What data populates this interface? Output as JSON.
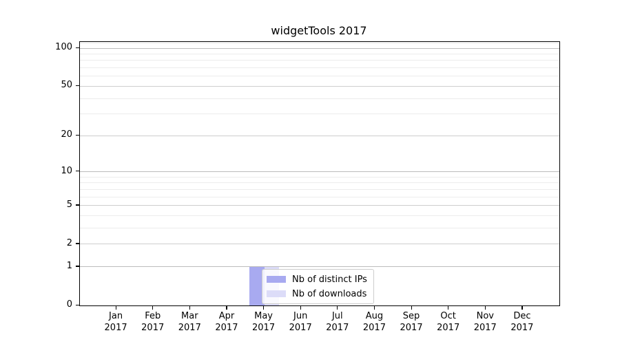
{
  "chart_data": {
    "type": "bar",
    "title": "widgetTools 2017",
    "categories": [
      "Jan",
      "Feb",
      "Mar",
      "Apr",
      "May",
      "Jun",
      "Jul",
      "Aug",
      "Sep",
      "Oct",
      "Nov",
      "Dec"
    ],
    "category_year": "2017",
    "series": [
      {
        "name": "Nb of distinct IPs",
        "color": "#a8aaf0",
        "values": [
          0,
          0,
          0,
          0,
          1,
          0,
          0,
          0,
          0,
          0,
          0,
          0
        ]
      },
      {
        "name": "Nb of downloads",
        "color": "#dcdcf8",
        "values": [
          0,
          0,
          0,
          0,
          1,
          0,
          0,
          0,
          0,
          0,
          0,
          0
        ]
      }
    ],
    "xlabel": "",
    "ylabel": "",
    "yscale": "log1p",
    "ylim": [
      0,
      112
    ],
    "y_ticks": [
      0,
      1,
      2,
      5,
      10,
      20,
      50,
      100
    ],
    "y_minor_ticks": [
      3,
      4,
      6,
      7,
      8,
      9,
      30,
      40,
      60,
      70,
      80,
      90,
      110
    ],
    "grid": "horizontal-major-and-minor",
    "grid_major_color": "#cdcdcd",
    "grid_decade_color": "#bcbcbc",
    "grid_minor_color": "#ececec",
    "legend_position": "inside-bottom-center",
    "bar_group_width": 0.8
  }
}
